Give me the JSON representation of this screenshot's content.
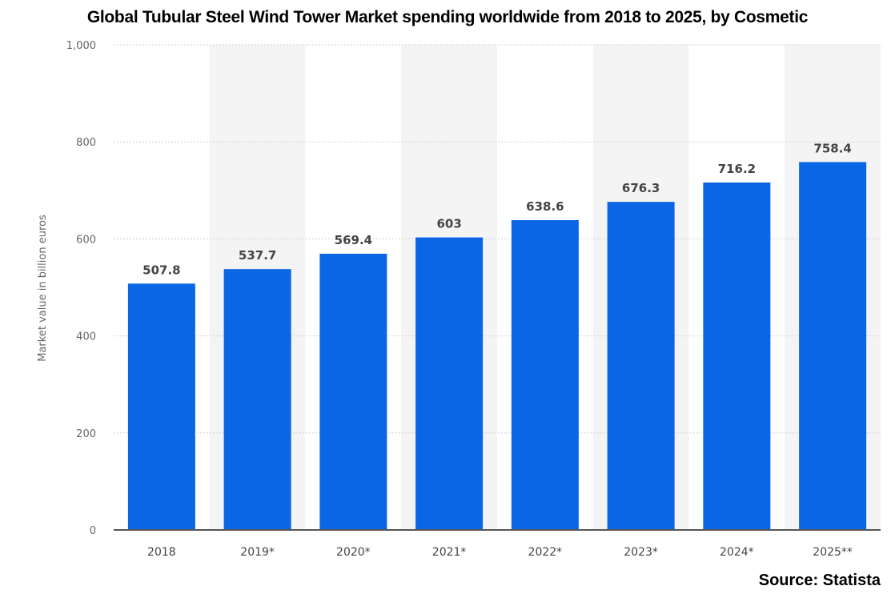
{
  "chart_data": {
    "type": "bar",
    "title": "Global Tubular Steel Wind Tower Market spending worldwide from 2018 to 2025, by Cosmetic",
    "categories": [
      "2018",
      "2019*",
      "2020*",
      "2021*",
      "2022*",
      "2023*",
      "2024*",
      "2025**"
    ],
    "values": [
      507.8,
      537.7,
      569.4,
      603,
      638.6,
      676.3,
      716.2,
      758.4
    ],
    "value_labels": [
      "507.8",
      "537.7",
      "569.4",
      "603",
      "638.6",
      "676.3",
      "716.2",
      "758.4"
    ],
    "xlabel": "",
    "ylabel": "Market value in billion euros",
    "ylim": [
      0,
      1000
    ],
    "yticks": [
      0,
      200,
      400,
      600,
      800,
      1000
    ],
    "ytick_labels": [
      "0",
      "200",
      "400",
      "600",
      "800",
      "1,000"
    ],
    "grid": true,
    "alternating_column_shading": true,
    "colors": {
      "bar": "#0a66e4",
      "shade": "#f4f4f4",
      "grid": "#d0d0d0",
      "axis": "#555555"
    }
  },
  "source": "Source: Statista"
}
